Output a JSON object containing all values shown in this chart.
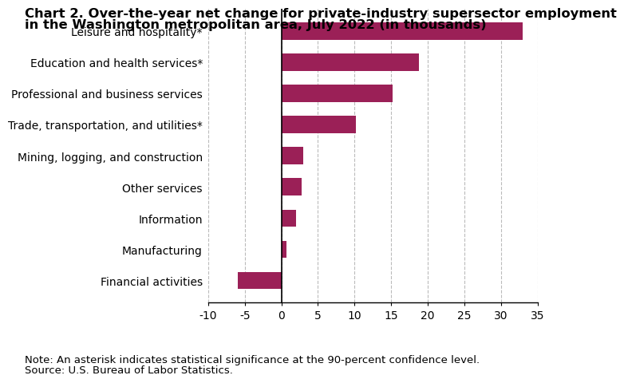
{
  "title_line1": "Chart 2. Over-the-year net change for private-industry supersector employment",
  "title_line2": "in the Washington metropolitan area, July 2022 (in thousands)",
  "categories": [
    "Financial activities",
    "Manufacturing",
    "Information",
    "Other services",
    "Mining, logging, and construction",
    "Trade, transportation, and utilities*",
    "Professional and business services",
    "Education and health services*",
    "Leisure and hospitality*"
  ],
  "values": [
    -6.0,
    0.7,
    2.0,
    2.8,
    3.0,
    10.2,
    15.2,
    18.8,
    33.0
  ],
  "bar_color": "#9b2057",
  "xlim": [
    -10,
    35
  ],
  "xticks": [
    -10,
    -5,
    0,
    5,
    10,
    15,
    20,
    25,
    30,
    35
  ],
  "note": "Note: An asterisk indicates statistical significance at the 90-percent confidence level.",
  "source": "Source: U.S. Bureau of Labor Statistics.",
  "background_color": "#ffffff",
  "grid_color": "#bbbbbb",
  "title_fontsize": 11.8,
  "tick_fontsize": 10,
  "note_fontsize": 9.5,
  "bar_height": 0.55
}
